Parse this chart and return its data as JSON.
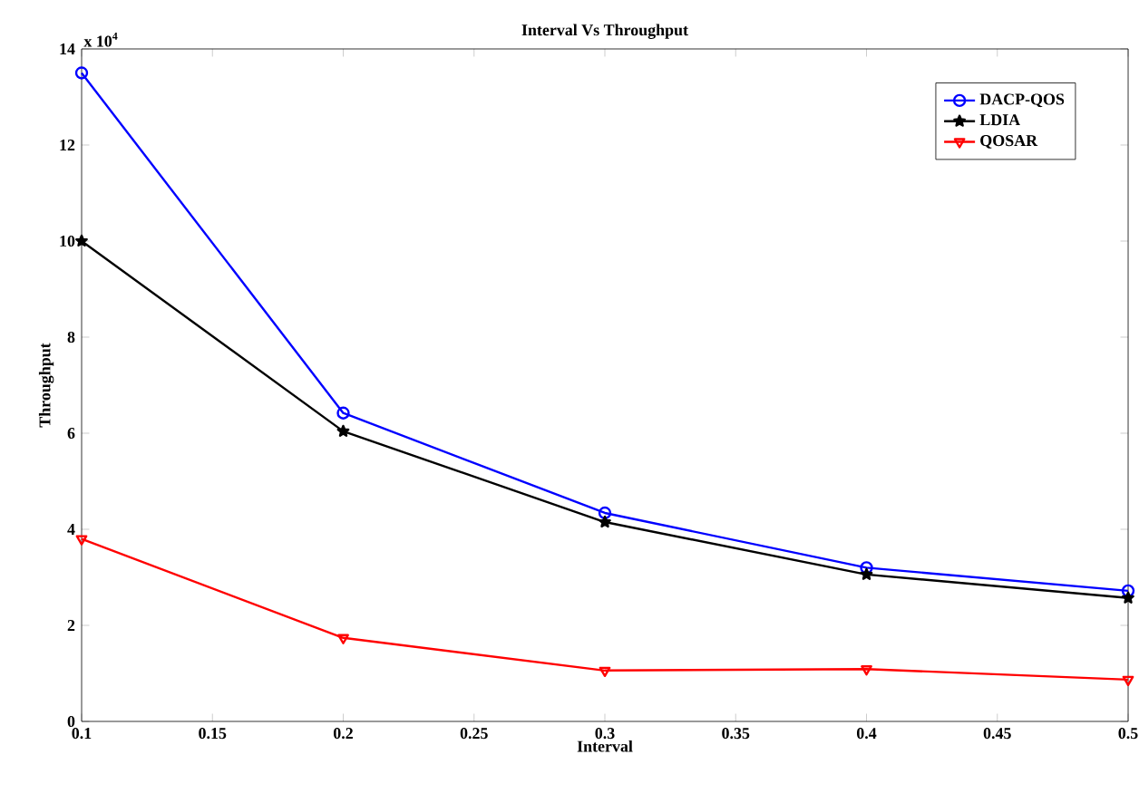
{
  "chart_data": {
    "type": "line",
    "title": "Interval Vs Throughput",
    "xlabel": "Interval",
    "ylabel": "Throughput",
    "x": [
      0.1,
      0.2,
      0.3,
      0.4,
      0.5
    ],
    "series": [
      {
        "name": "DACP-QOS",
        "color": "#0000ff",
        "marker": "circle",
        "values": [
          13.5,
          6.42,
          4.34,
          3.2,
          2.72
        ]
      },
      {
        "name": "LDIA",
        "color": "#000000",
        "marker": "star",
        "values": [
          10.0,
          6.04,
          4.15,
          3.06,
          2.57
        ]
      },
      {
        "name": "QOSAR",
        "color": "#ff0000",
        "marker": "triangle",
        "values": [
          3.8,
          1.74,
          1.06,
          1.09,
          0.87
        ]
      }
    ],
    "xlim": [
      0.1,
      0.5
    ],
    "xticks": [
      0.1,
      0.15,
      0.2,
      0.25,
      0.3,
      0.35,
      0.4,
      0.45,
      0.5
    ],
    "ylim": [
      0,
      14
    ],
    "yticks": [
      0,
      2,
      4,
      6,
      8,
      10,
      12,
      14
    ],
    "annotations": [
      "x 10$^{4}$"
    ],
    "legend": "top right",
    "grid": false
  }
}
